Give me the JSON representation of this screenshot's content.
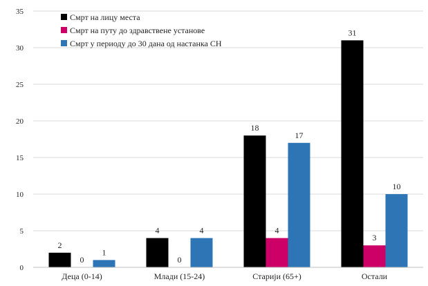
{
  "chart_data": {
    "type": "bar",
    "title": "",
    "xlabel": "",
    "ylabel": "",
    "categories": [
      "Деца (0-14)",
      "Млади (15-24)",
      "Старији (65+)",
      "Остали"
    ],
    "series": [
      {
        "name": "Смрт на лицу места",
        "color": "#000000",
        "values": [
          2,
          4,
          18,
          31
        ]
      },
      {
        "name": "Смрт на путу до здравствене установе",
        "color": "#cc0066",
        "values": [
          0,
          0,
          4,
          3
        ]
      },
      {
        "name": "Смрт у периоду до 30 дана од настанка СН",
        "color": "#2e75b6",
        "values": [
          1,
          4,
          17,
          10
        ]
      }
    ],
    "ylim": [
      0,
      35
    ],
    "yticks": [
      0,
      5,
      10,
      15,
      20,
      25,
      30,
      35
    ],
    "grid": true,
    "legend_position": "top-left",
    "data_labels": true
  }
}
